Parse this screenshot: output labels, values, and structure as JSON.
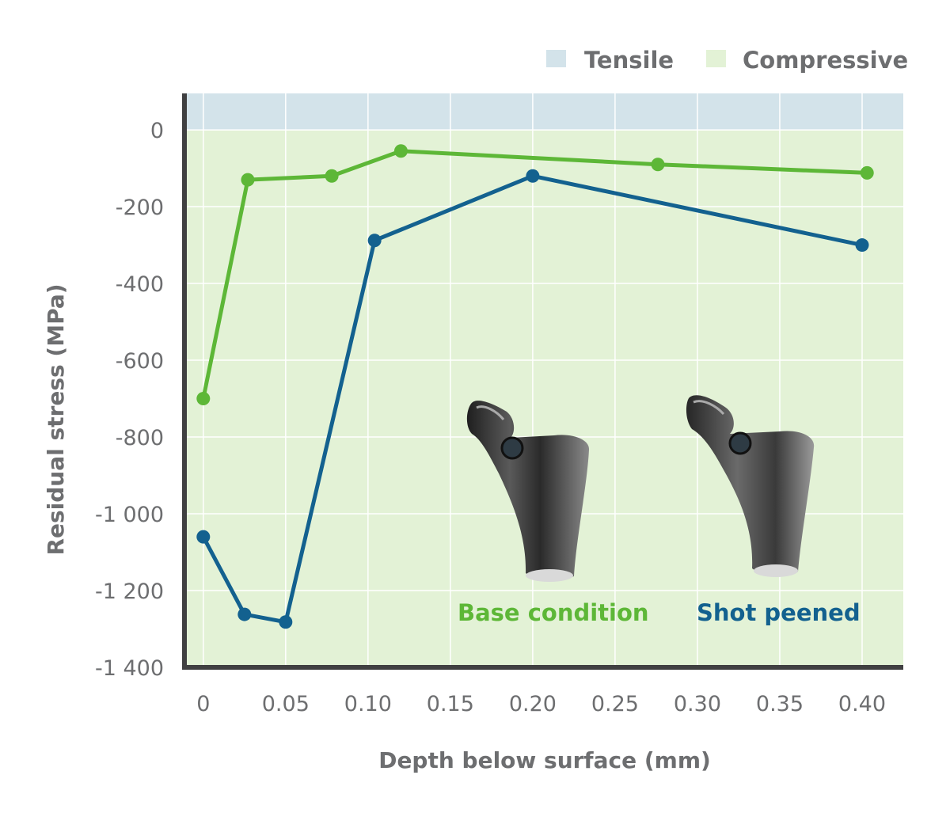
{
  "chart_data": {
    "type": "line",
    "xlabel": "Depth below surface (mm)",
    "ylabel": "Residual stress (MPa)",
    "xlim": [
      -0.01,
      0.425
    ],
    "ylim": [
      -1400,
      95
    ],
    "x_ticks": [
      0,
      0.05,
      0.1,
      0.15,
      0.2,
      0.25,
      0.3,
      0.35,
      0.4
    ],
    "x_tick_labels": [
      "0",
      "0.05",
      "0.10",
      "0.15",
      "0.20",
      "0.25",
      "0.30",
      "0.35",
      "0.40"
    ],
    "y_ticks": [
      0,
      -200,
      -400,
      -600,
      -800,
      -1000,
      -1200,
      -1400
    ],
    "y_tick_labels": [
      "0",
      "-200",
      "-400",
      "-600",
      "-800",
      "-1 000",
      "-1 200",
      "-1 400"
    ],
    "grid": true,
    "legend": {
      "placement": "top-right",
      "items": [
        {
          "label": "Tensile",
          "color": "#d3e3ea"
        },
        {
          "label": "Compressive",
          "color": "#e3f2d6"
        }
      ]
    },
    "regions": [
      {
        "label": "Tensile",
        "from": 0,
        "to": 95,
        "color": "#d3e3ea"
      },
      {
        "label": "Compressive",
        "from": -1400,
        "to": 0,
        "color": "#e3f2d6"
      }
    ],
    "series": [
      {
        "name": "Base condition",
        "color": "#5db737",
        "x": [
          0,
          0.027,
          0.078,
          0.12,
          0.276,
          0.403
        ],
        "y": [
          -700,
          -130,
          -120,
          -55,
          -90,
          -112
        ]
      },
      {
        "name": "Shot peened",
        "color": "#13618f",
        "x": [
          0,
          0.025,
          0.05,
          0.104,
          0.2,
          0.4
        ],
        "y": [
          -1060,
          -1262,
          -1282,
          -288,
          -120,
          -300
        ]
      }
    ]
  }
}
